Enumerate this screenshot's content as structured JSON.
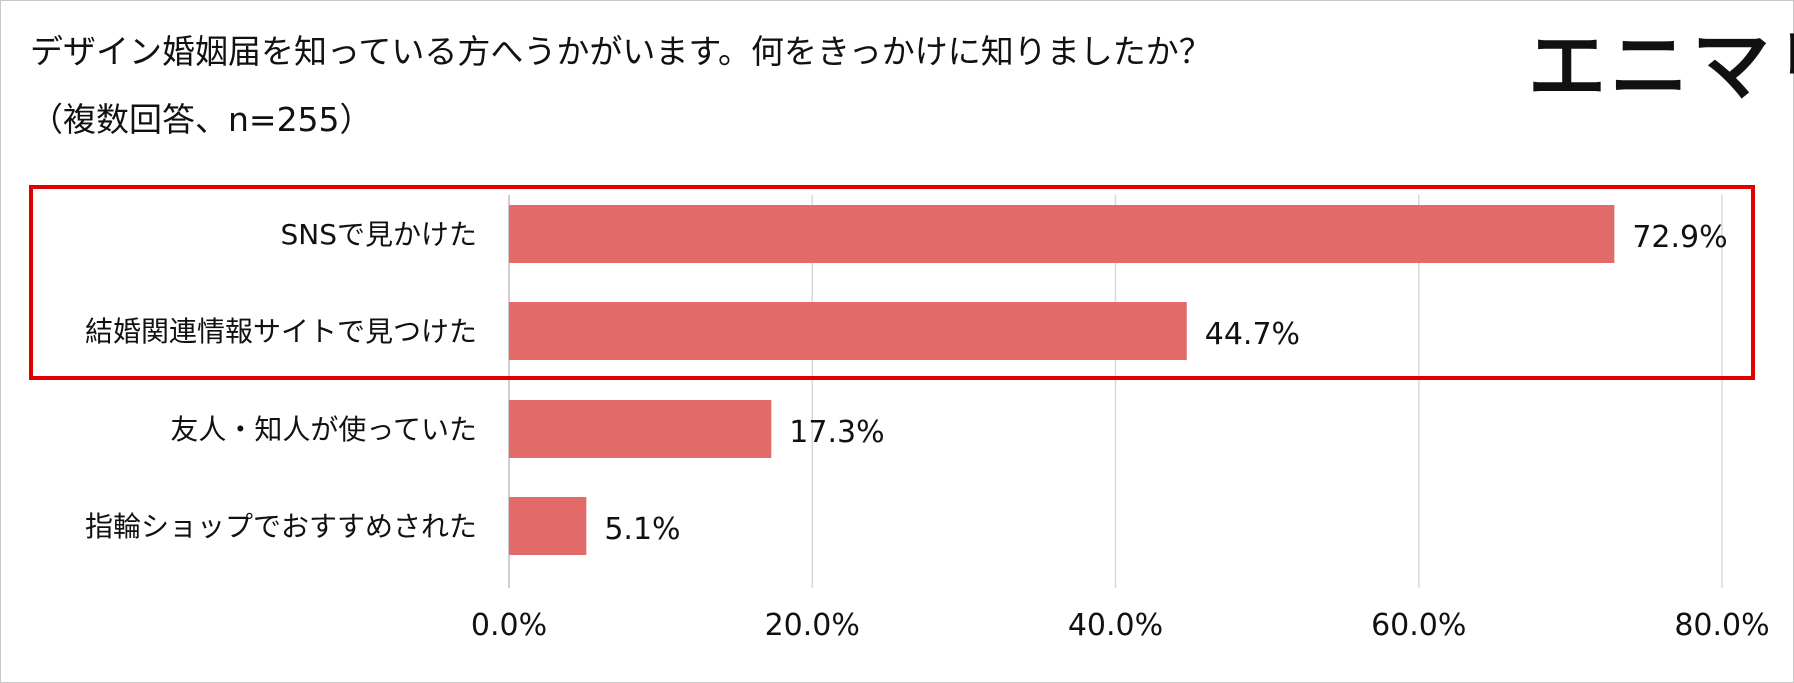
{
  "title": "デザイン婚姻届を知っている方へうかがいます。何をきっかけに知りましたか？",
  "subtitle": "（複数回答、n=255）",
  "logo": "エニマリ",
  "colors": {
    "bar": "#e26b69",
    "highlight": "#e00000",
    "grid": "#d9d9d9"
  },
  "chart_data": {
    "type": "bar",
    "orientation": "horizontal",
    "categories": [
      "SNSで見かけた",
      "結婚関連情報サイトで見つけた",
      "友人・知人が使っていた",
      "指輪ショップでおすすめされた"
    ],
    "values": [
      72.9,
      44.7,
      17.3,
      5.1
    ],
    "value_labels": [
      "72.9%",
      "44.7%",
      "17.3%",
      "5.1%"
    ],
    "xlim": [
      0,
      80
    ],
    "ticks": [
      0,
      20,
      40,
      60,
      80
    ],
    "tick_labels": [
      "0.0%",
      "20.0%",
      "40.0%",
      "60.0%",
      "80.0%"
    ],
    "grid": "vertical",
    "highlighted_categories": [
      0,
      1
    ]
  }
}
